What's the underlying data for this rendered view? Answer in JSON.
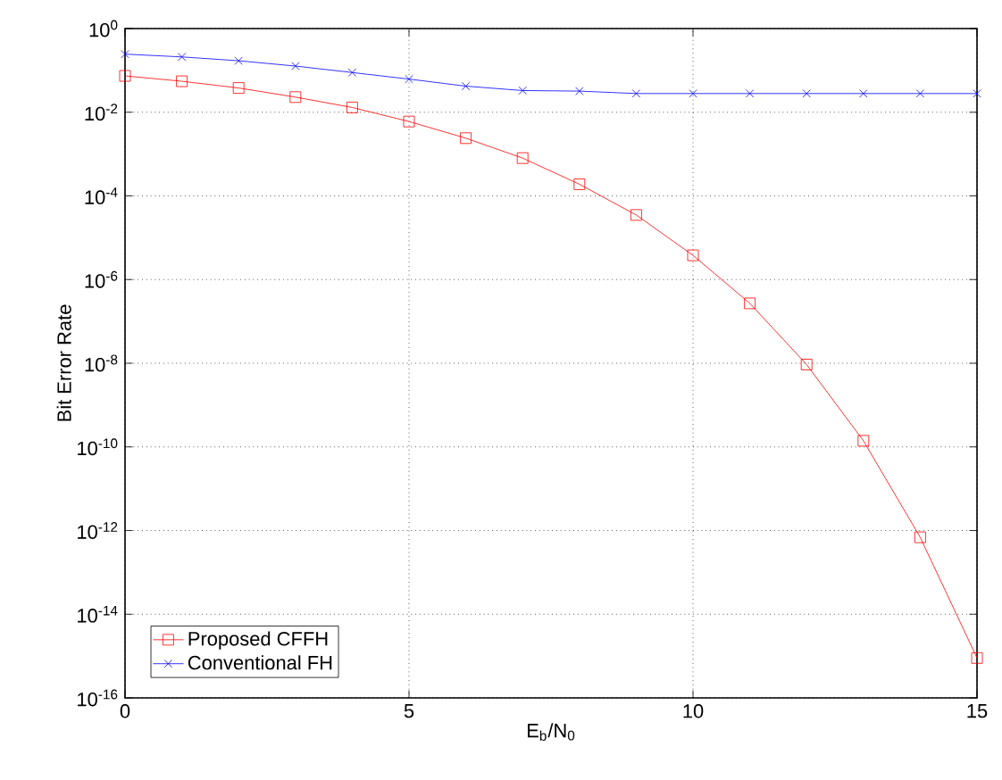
{
  "chart_data": {
    "type": "line",
    "xlabel": "E$_{b}$/N$_{0}$",
    "ylabel": "Bit Error Rate",
    "x": [
      0,
      1,
      2,
      3,
      4,
      5,
      6,
      7,
      8,
      9,
      10,
      11,
      12,
      13,
      14,
      15
    ],
    "series": [
      {
        "name": "Proposed CFFH",
        "color": "#ff0000",
        "marker": "square",
        "values": [
          0.074,
          0.055,
          0.038,
          0.023,
          0.013,
          0.006,
          0.0024,
          0.0008,
          0.00019,
          3.5e-05,
          3.8e-06,
          2.7e-07,
          9.3e-09,
          1.4e-10,
          6.9e-13,
          9e-16
        ]
      },
      {
        "name": "Conventional FH",
        "color": "#0000ff",
        "marker": "cross",
        "values": [
          0.245,
          0.21,
          0.17,
          0.127,
          0.089,
          0.062,
          0.042,
          0.033,
          0.032,
          0.028,
          0.028,
          0.028,
          0.028,
          0.028,
          0.028,
          0.028
        ]
      }
    ],
    "log": "y",
    "xlim": [
      0,
      15
    ],
    "xticks": [
      0,
      5,
      10,
      15
    ],
    "ylim": [
      1e-16,
      1
    ],
    "yticks": [
      {
        "value": 1e-16,
        "label": "10$^{-16}$"
      },
      {
        "value": 1e-14,
        "label": "10$^{-14}$"
      },
      {
        "value": 1e-12,
        "label": "10$^{-12}$"
      },
      {
        "value": 1e-10,
        "label": "10$^{-10}$"
      },
      {
        "value": 1e-08,
        "label": "10$^{-8}$"
      },
      {
        "value": 1e-06,
        "label": "10$^{-6}$"
      },
      {
        "value": 0.0001,
        "label": "10$^{-4}$"
      },
      {
        "value": 0.01,
        "label": "10$^{-2}$"
      },
      {
        "value": 1,
        "label": "10$^{0}$"
      }
    ],
    "grid": true,
    "legend": "bottom left",
    "line_style": "solid"
  }
}
